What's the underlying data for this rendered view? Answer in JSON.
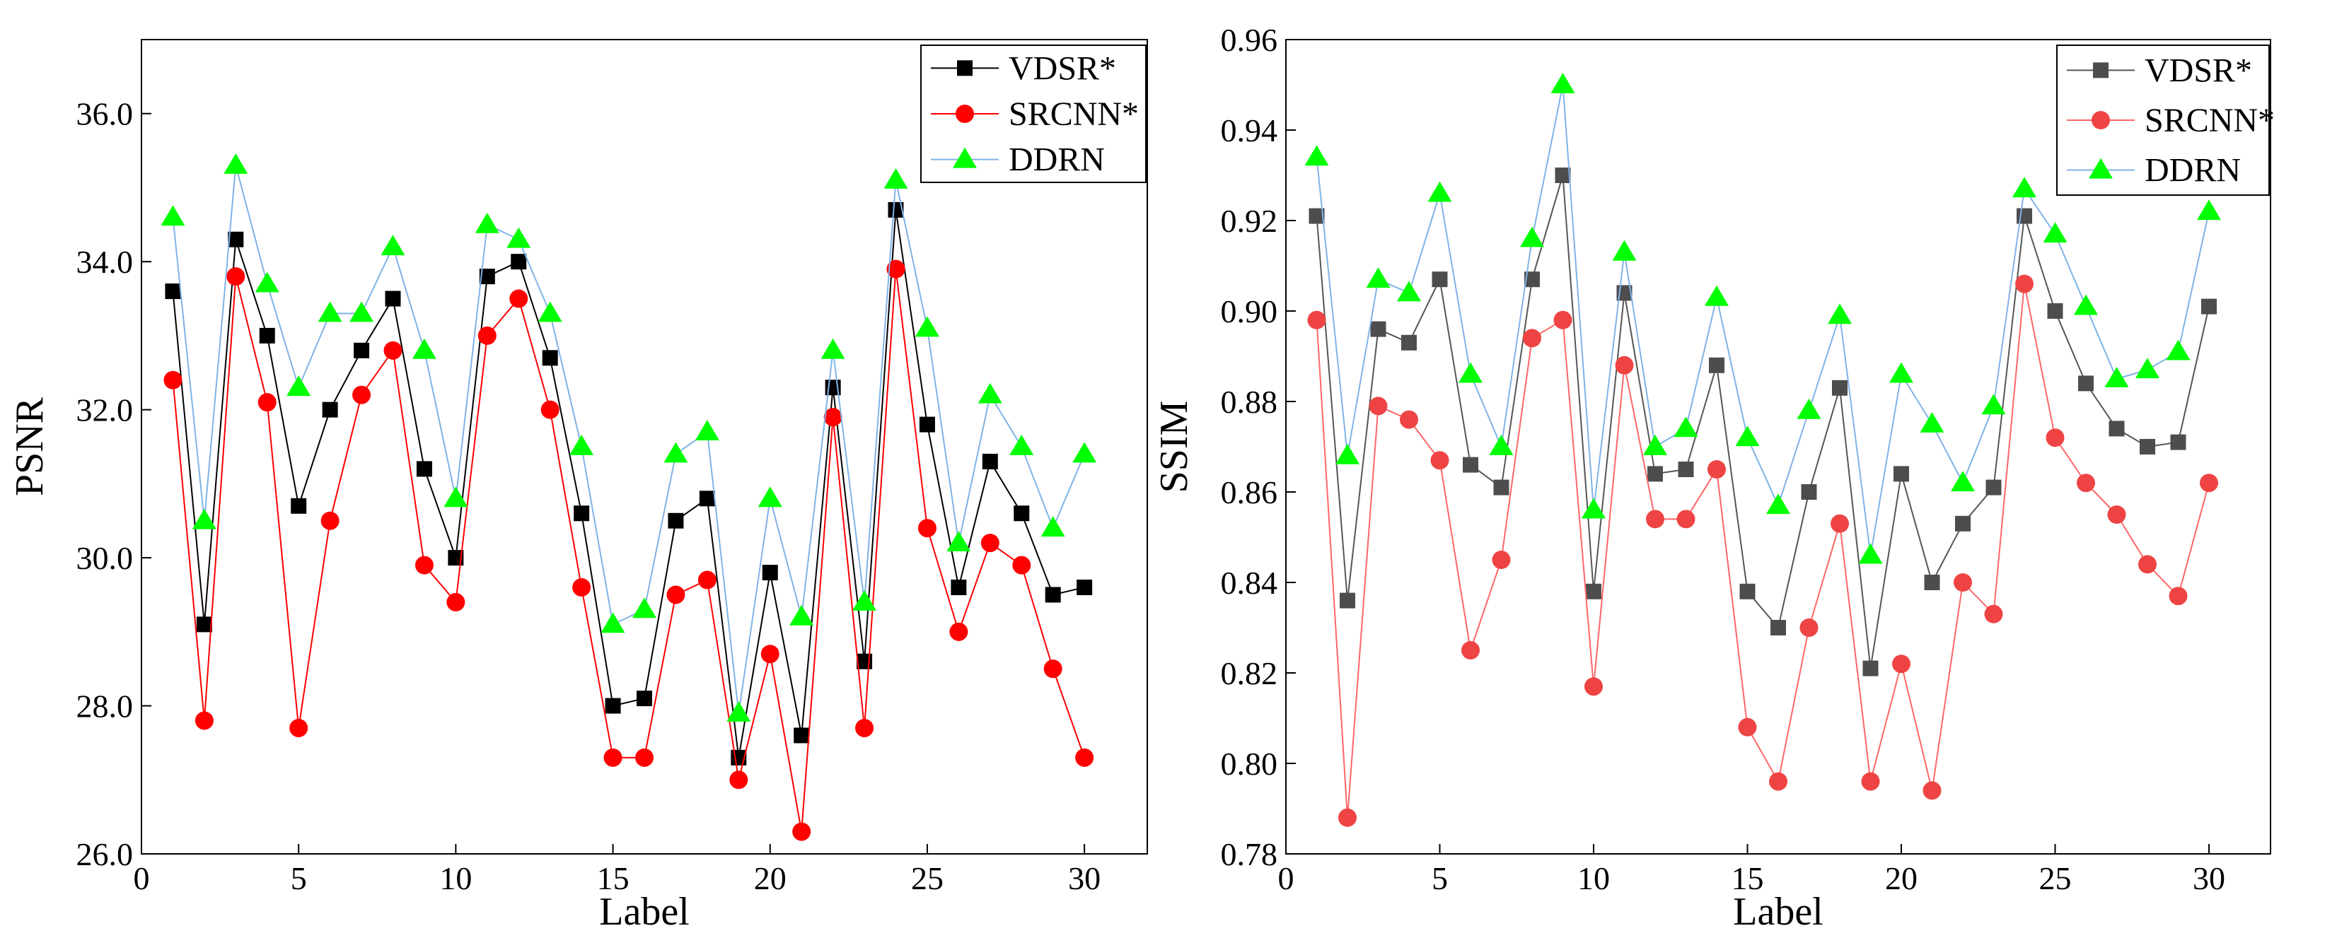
{
  "chart_data": [
    {
      "type": "line",
      "xlabel": "Label",
      "ylabel": "PSNR",
      "xlim": [
        0,
        32
      ],
      "ylim": [
        26.0,
        37.0
      ],
      "xticks": [
        "0",
        "5",
        "10",
        "15",
        "20",
        "25",
        "30"
      ],
      "yticks": [
        "26.0",
        "28.0",
        "30.0",
        "32.0",
        "34.0",
        "36.0"
      ],
      "legend_position": "top-right",
      "x": [
        1,
        2,
        3,
        4,
        5,
        6,
        7,
        8,
        9,
        10,
        11,
        12,
        13,
        14,
        15,
        16,
        17,
        18,
        19,
        20,
        21,
        22,
        23,
        24,
        25,
        26,
        27,
        28,
        29,
        30
      ],
      "series": [
        {
          "name": "VDSR*",
          "marker": "square",
          "color": "#000000",
          "values": [
            33.6,
            29.1,
            34.3,
            33.0,
            30.7,
            32.0,
            32.8,
            33.5,
            31.2,
            30.0,
            33.8,
            34.0,
            32.7,
            30.6,
            28.0,
            28.1,
            30.5,
            30.8,
            27.3,
            29.8,
            27.6,
            32.3,
            28.6,
            34.7,
            31.8,
            29.6,
            31.3,
            30.6,
            29.5,
            29.6
          ]
        },
        {
          "name": "SRCNN*",
          "marker": "circle",
          "color": "#ff0000",
          "values": [
            32.4,
            27.8,
            33.8,
            32.1,
            27.7,
            30.5,
            32.2,
            32.8,
            29.9,
            29.4,
            33.0,
            33.5,
            32.0,
            29.6,
            27.3,
            27.3,
            29.5,
            29.7,
            27.0,
            28.7,
            26.3,
            31.9,
            27.7,
            33.9,
            30.4,
            29.0,
            30.2,
            29.9,
            28.5,
            27.3
          ]
        },
        {
          "name": "DDRN",
          "marker": "triangle",
          "color": "#00ff00",
          "values": [
            34.6,
            30.5,
            35.3,
            33.7,
            32.3,
            33.3,
            33.3,
            34.2,
            32.8,
            30.8,
            34.5,
            34.3,
            33.3,
            31.5,
            29.1,
            29.3,
            31.4,
            31.7,
            27.9,
            30.8,
            29.2,
            32.8,
            29.4,
            35.1,
            33.1,
            30.2,
            32.2,
            31.5,
            30.4,
            31.4
          ]
        }
      ]
    },
    {
      "type": "line",
      "xlabel": "Label",
      "ylabel": "SSIM",
      "xlim": [
        0,
        32
      ],
      "ylim": [
        0.78,
        0.96
      ],
      "xticks": [
        "0",
        "5",
        "10",
        "15",
        "20",
        "25",
        "30"
      ],
      "yticks": [
        "0.78",
        "0.80",
        "0.82",
        "0.84",
        "0.86",
        "0.88",
        "0.90",
        "0.92",
        "0.94",
        "0.96"
      ],
      "legend_position": "top-right",
      "x": [
        1,
        2,
        3,
        4,
        5,
        6,
        7,
        8,
        9,
        10,
        11,
        12,
        13,
        14,
        15,
        16,
        17,
        18,
        19,
        20,
        21,
        22,
        23,
        24,
        25,
        26,
        27,
        28,
        29,
        30
      ],
      "series": [
        {
          "name": "VDSR*",
          "marker": "square",
          "color": "#4d4d4d",
          "values": [
            0.921,
            0.836,
            0.896,
            0.893,
            0.907,
            0.866,
            0.861,
            0.907,
            0.93,
            0.838,
            0.904,
            0.864,
            0.865,
            0.888,
            0.838,
            0.83,
            0.86,
            0.883,
            0.821,
            0.864,
            0.84,
            0.853,
            0.861,
            0.921,
            0.9,
            0.884,
            0.874,
            0.87,
            0.871,
            0.901
          ]
        },
        {
          "name": "SRCNN*",
          "marker": "circle",
          "color": "#ee4444",
          "values": [
            0.898,
            0.788,
            0.879,
            0.876,
            0.867,
            0.825,
            0.845,
            0.894,
            0.898,
            0.817,
            0.888,
            0.854,
            0.854,
            0.865,
            0.808,
            0.796,
            0.83,
            0.853,
            0.796,
            0.822,
            0.794,
            0.84,
            0.833,
            0.906,
            0.872,
            0.862,
            0.855,
            0.844,
            0.837,
            0.862
          ]
        },
        {
          "name": "DDRN",
          "marker": "triangle",
          "color": "#00ff00",
          "values": [
            0.934,
            0.868,
            0.907,
            0.904,
            0.926,
            0.886,
            0.87,
            0.916,
            0.95,
            0.856,
            0.913,
            0.87,
            0.874,
            0.903,
            0.872,
            0.857,
            0.878,
            0.899,
            0.846,
            0.886,
            0.875,
            0.862,
            0.879,
            0.927,
            0.917,
            0.901,
            0.885,
            0.887,
            0.891,
            0.922
          ]
        }
      ]
    }
  ]
}
